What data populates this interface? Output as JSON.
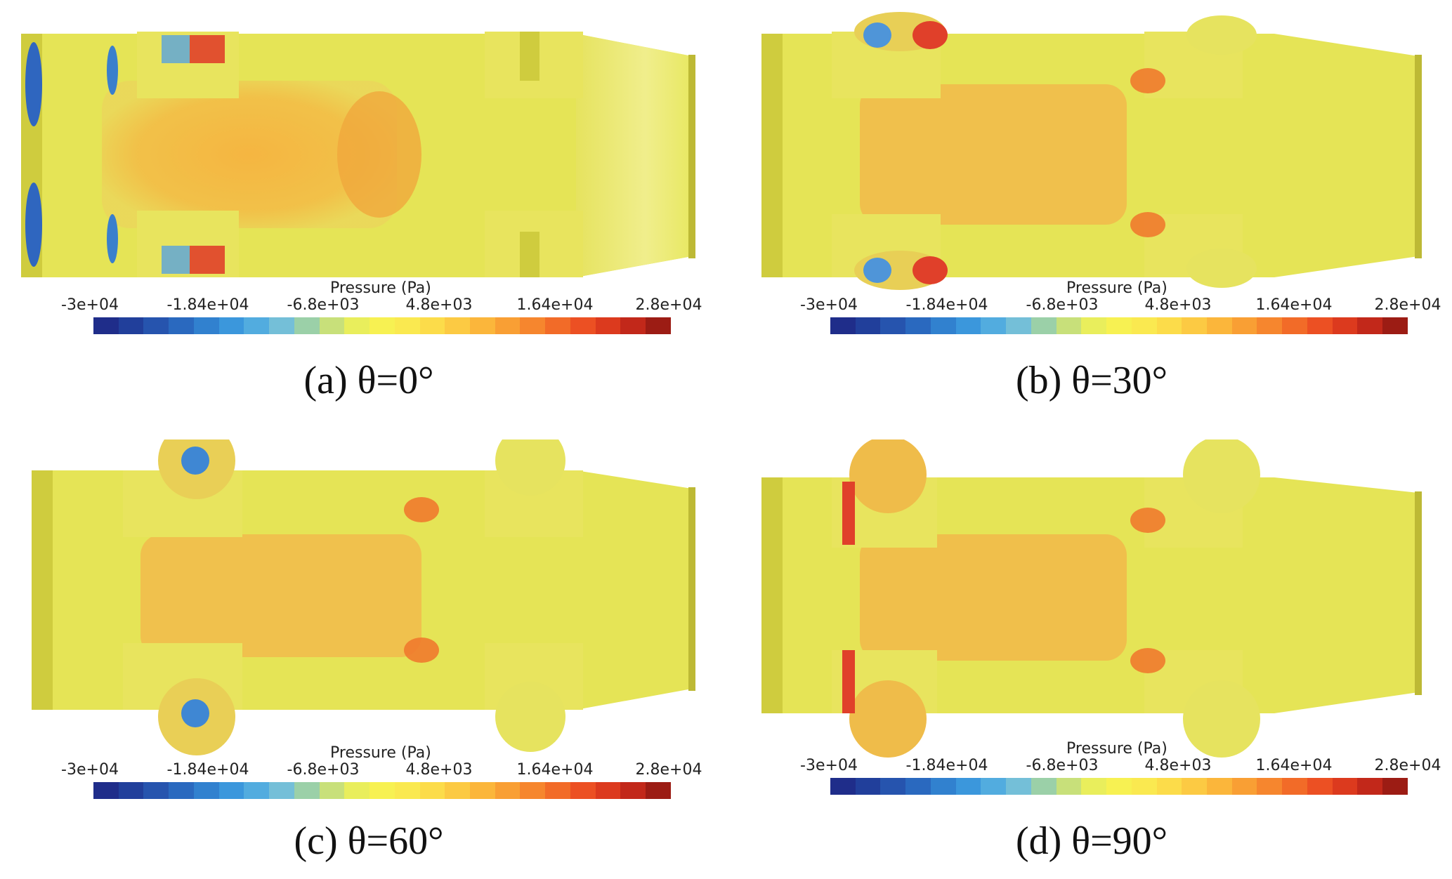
{
  "colorbar": {
    "title": "Pressure (Pa)",
    "ticks": [
      "-3e+04",
      "-1.84e+04",
      "-6.8e+03",
      "4.8e+03",
      "1.64e+04",
      "2.8e+04"
    ],
    "colors": [
      "#1f2d8a",
      "#213f9b",
      "#2654ae",
      "#2a69bf",
      "#3181cf",
      "#3b97dc",
      "#52acdf",
      "#74bfd8",
      "#9bd0a8",
      "#c8e07a",
      "#e9ee5c",
      "#f7f152",
      "#fae950",
      "#fcdc4a",
      "#fcca43",
      "#fbb63b",
      "#f99f34",
      "#f6862e",
      "#f26b28",
      "#ec5023",
      "#dc3a1e",
      "#c2281a",
      "#9c1c14"
    ]
  },
  "panels": [
    {
      "id": "a",
      "caption": "(a) θ=0°",
      "angle": 0
    },
    {
      "id": "b",
      "caption": "(b) θ=30°",
      "angle": 30
    },
    {
      "id": "c",
      "caption": "(c) θ=60°",
      "angle": 60
    },
    {
      "id": "d",
      "caption": "(d) θ=90°",
      "angle": 90
    }
  ]
}
